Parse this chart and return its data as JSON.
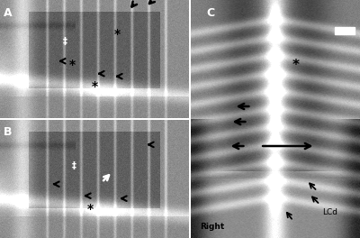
{
  "panel_A_label": "A",
  "panel_B_label": "B",
  "panel_C_label": "C",
  "text_right": "Right",
  "text_lcd": "LCd",
  "fig_width": 4.0,
  "fig_height": 2.64,
  "dpi": 100,
  "border_color": "#111111"
}
